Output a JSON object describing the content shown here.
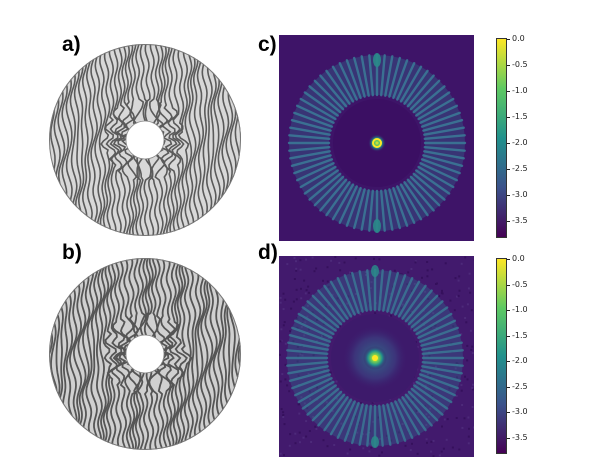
{
  "panels": {
    "a": {
      "label": "a)"
    },
    "b": {
      "label": "b)"
    },
    "c": {
      "label": "c)"
    },
    "d": {
      "label": "d)"
    }
  },
  "colorbar_c": {
    "ticks": [
      "0.0",
      "-0.5",
      "-1.0",
      "-1.5",
      "-2.0",
      "-2.5",
      "-3.0",
      "-3.5"
    ],
    "min": -3.8,
    "max": 0.0,
    "colormap": [
      "#440154",
      "#3b528b",
      "#21918c",
      "#5ec962",
      "#fde725"
    ]
  },
  "colorbar_d": {
    "ticks": [
      "0.0",
      "-0.5",
      "-1.0",
      "-1.5",
      "-2.0",
      "-2.5",
      "-3.0",
      "-3.5"
    ],
    "min": -3.8,
    "max": 0.0,
    "colormap": [
      "#440154",
      "#3b528b",
      "#21918c",
      "#5ec962",
      "#fde725"
    ]
  },
  "colors": {
    "background_dark": "#3c0f66",
    "disk_fill": "#d6d6d6",
    "fringe_dark": "#5a5a5a"
  }
}
